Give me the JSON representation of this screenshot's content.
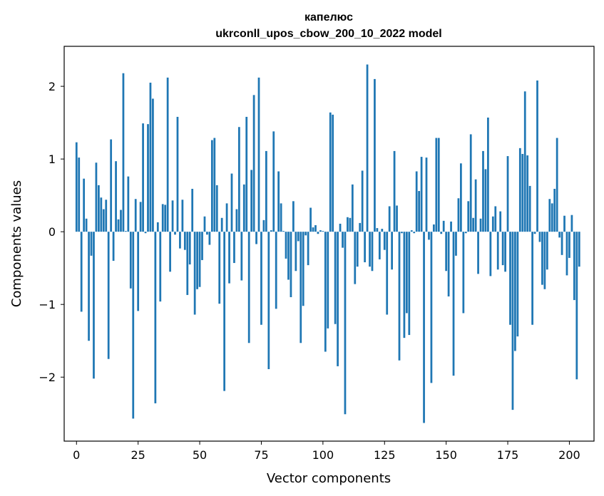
{
  "chart_data": {
    "type": "bar",
    "title": "капелюс",
    "subtitle": "ukrconll_upos_cbow_200_10_2022 model",
    "xlabel": "Vector components",
    "ylabel": "Components values",
    "xlim": [
      -5,
      210
    ],
    "ylim": [
      -2.88,
      2.55
    ],
    "xticks": [
      0,
      25,
      50,
      75,
      100,
      125,
      150,
      175,
      200
    ],
    "yticks": [
      -2,
      -1,
      0,
      1,
      2
    ],
    "ytick_labels": [
      "−2",
      "−1",
      "0",
      "1",
      "2"
    ],
    "bar_color": "#1f77b4",
    "grid": false,
    "values": [
      1.23,
      1.02,
      -1.1,
      0.73,
      0.18,
      -1.5,
      -0.33,
      -2.02,
      0.95,
      0.64,
      0.47,
      0.31,
      0.44,
      -1.75,
      1.27,
      -0.4,
      0.97,
      0.17,
      0.3,
      2.18,
      0.01,
      0.76,
      -0.78,
      -2.57,
      0.45,
      -1.09,
      0.41,
      1.49,
      -0.02,
      1.48,
      2.05,
      1.83,
      -2.36,
      0.13,
      -0.96,
      0.38,
      0.37,
      2.12,
      -0.55,
      0.43,
      -0.04,
      1.58,
      -0.23,
      0.44,
      -0.25,
      -0.87,
      -0.45,
      0.59,
      -1.14,
      -0.79,
      -0.76,
      -0.39,
      0.21,
      -0.04,
      -0.18,
      1.26,
      1.29,
      0.64,
      -0.99,
      0.19,
      -2.19,
      0.39,
      -0.71,
      0.8,
      -0.43,
      0.31,
      1.44,
      -0.67,
      0.65,
      1.58,
      -1.53,
      0.85,
      1.88,
      -0.17,
      2.12,
      -1.28,
      0.16,
      1.11,
      -1.89,
      0.02,
      1.38,
      -1.06,
      0.83,
      0.39,
      0.01,
      -0.37,
      -0.66,
      -0.9,
      0.42,
      -0.54,
      -0.13,
      -1.53,
      -1.02,
      -0.05,
      -0.46,
      0.33,
      0.06,
      0.09,
      -0.03,
      0.02,
      0.01,
      -1.65,
      -1.33,
      1.64,
      1.61,
      -1.27,
      -1.85,
      0.11,
      -0.22,
      -2.51,
      0.2,
      0.19,
      0.65,
      -0.72,
      -0.48,
      0.12,
      0.84,
      -0.42,
      2.3,
      -0.48,
      -0.54,
      2.1,
      0.05,
      -0.38,
      0.04,
      -0.25,
      -1.14,
      0.35,
      -0.52,
      1.11,
      0.36,
      -1.77,
      -0.02,
      -1.46,
      -1.12,
      -1.42,
      0.02,
      -0.02,
      0.83,
      0.56,
      1.03,
      -2.63,
      1.02,
      -0.11,
      -2.08,
      0.1,
      1.29,
      1.29,
      -0.03,
      0.15,
      -0.54,
      -0.89,
      0.14,
      -1.98,
      -0.33,
      0.46,
      0.94,
      -1.12,
      -0.02,
      0.42,
      1.34,
      0.19,
      0.72,
      -0.58,
      0.18,
      1.11,
      0.86,
      1.57,
      -0.61,
      0.21,
      0.35,
      -0.52,
      0.28,
      -0.46,
      -0.55,
      1.04,
      -1.28,
      -2.45,
      -1.64,
      -1.44,
      1.15,
      1.07,
      1.93,
      1.05,
      0.63,
      -1.28,
      -0.03,
      2.08,
      -0.14,
      -0.73,
      -0.79,
      -0.52,
      0.45,
      0.39,
      0.59,
      1.29,
      -0.08,
      -0.32,
      0.22,
      -0.6,
      -0.36,
      0.23,
      -0.94,
      -2.03,
      -0.48
    ]
  }
}
